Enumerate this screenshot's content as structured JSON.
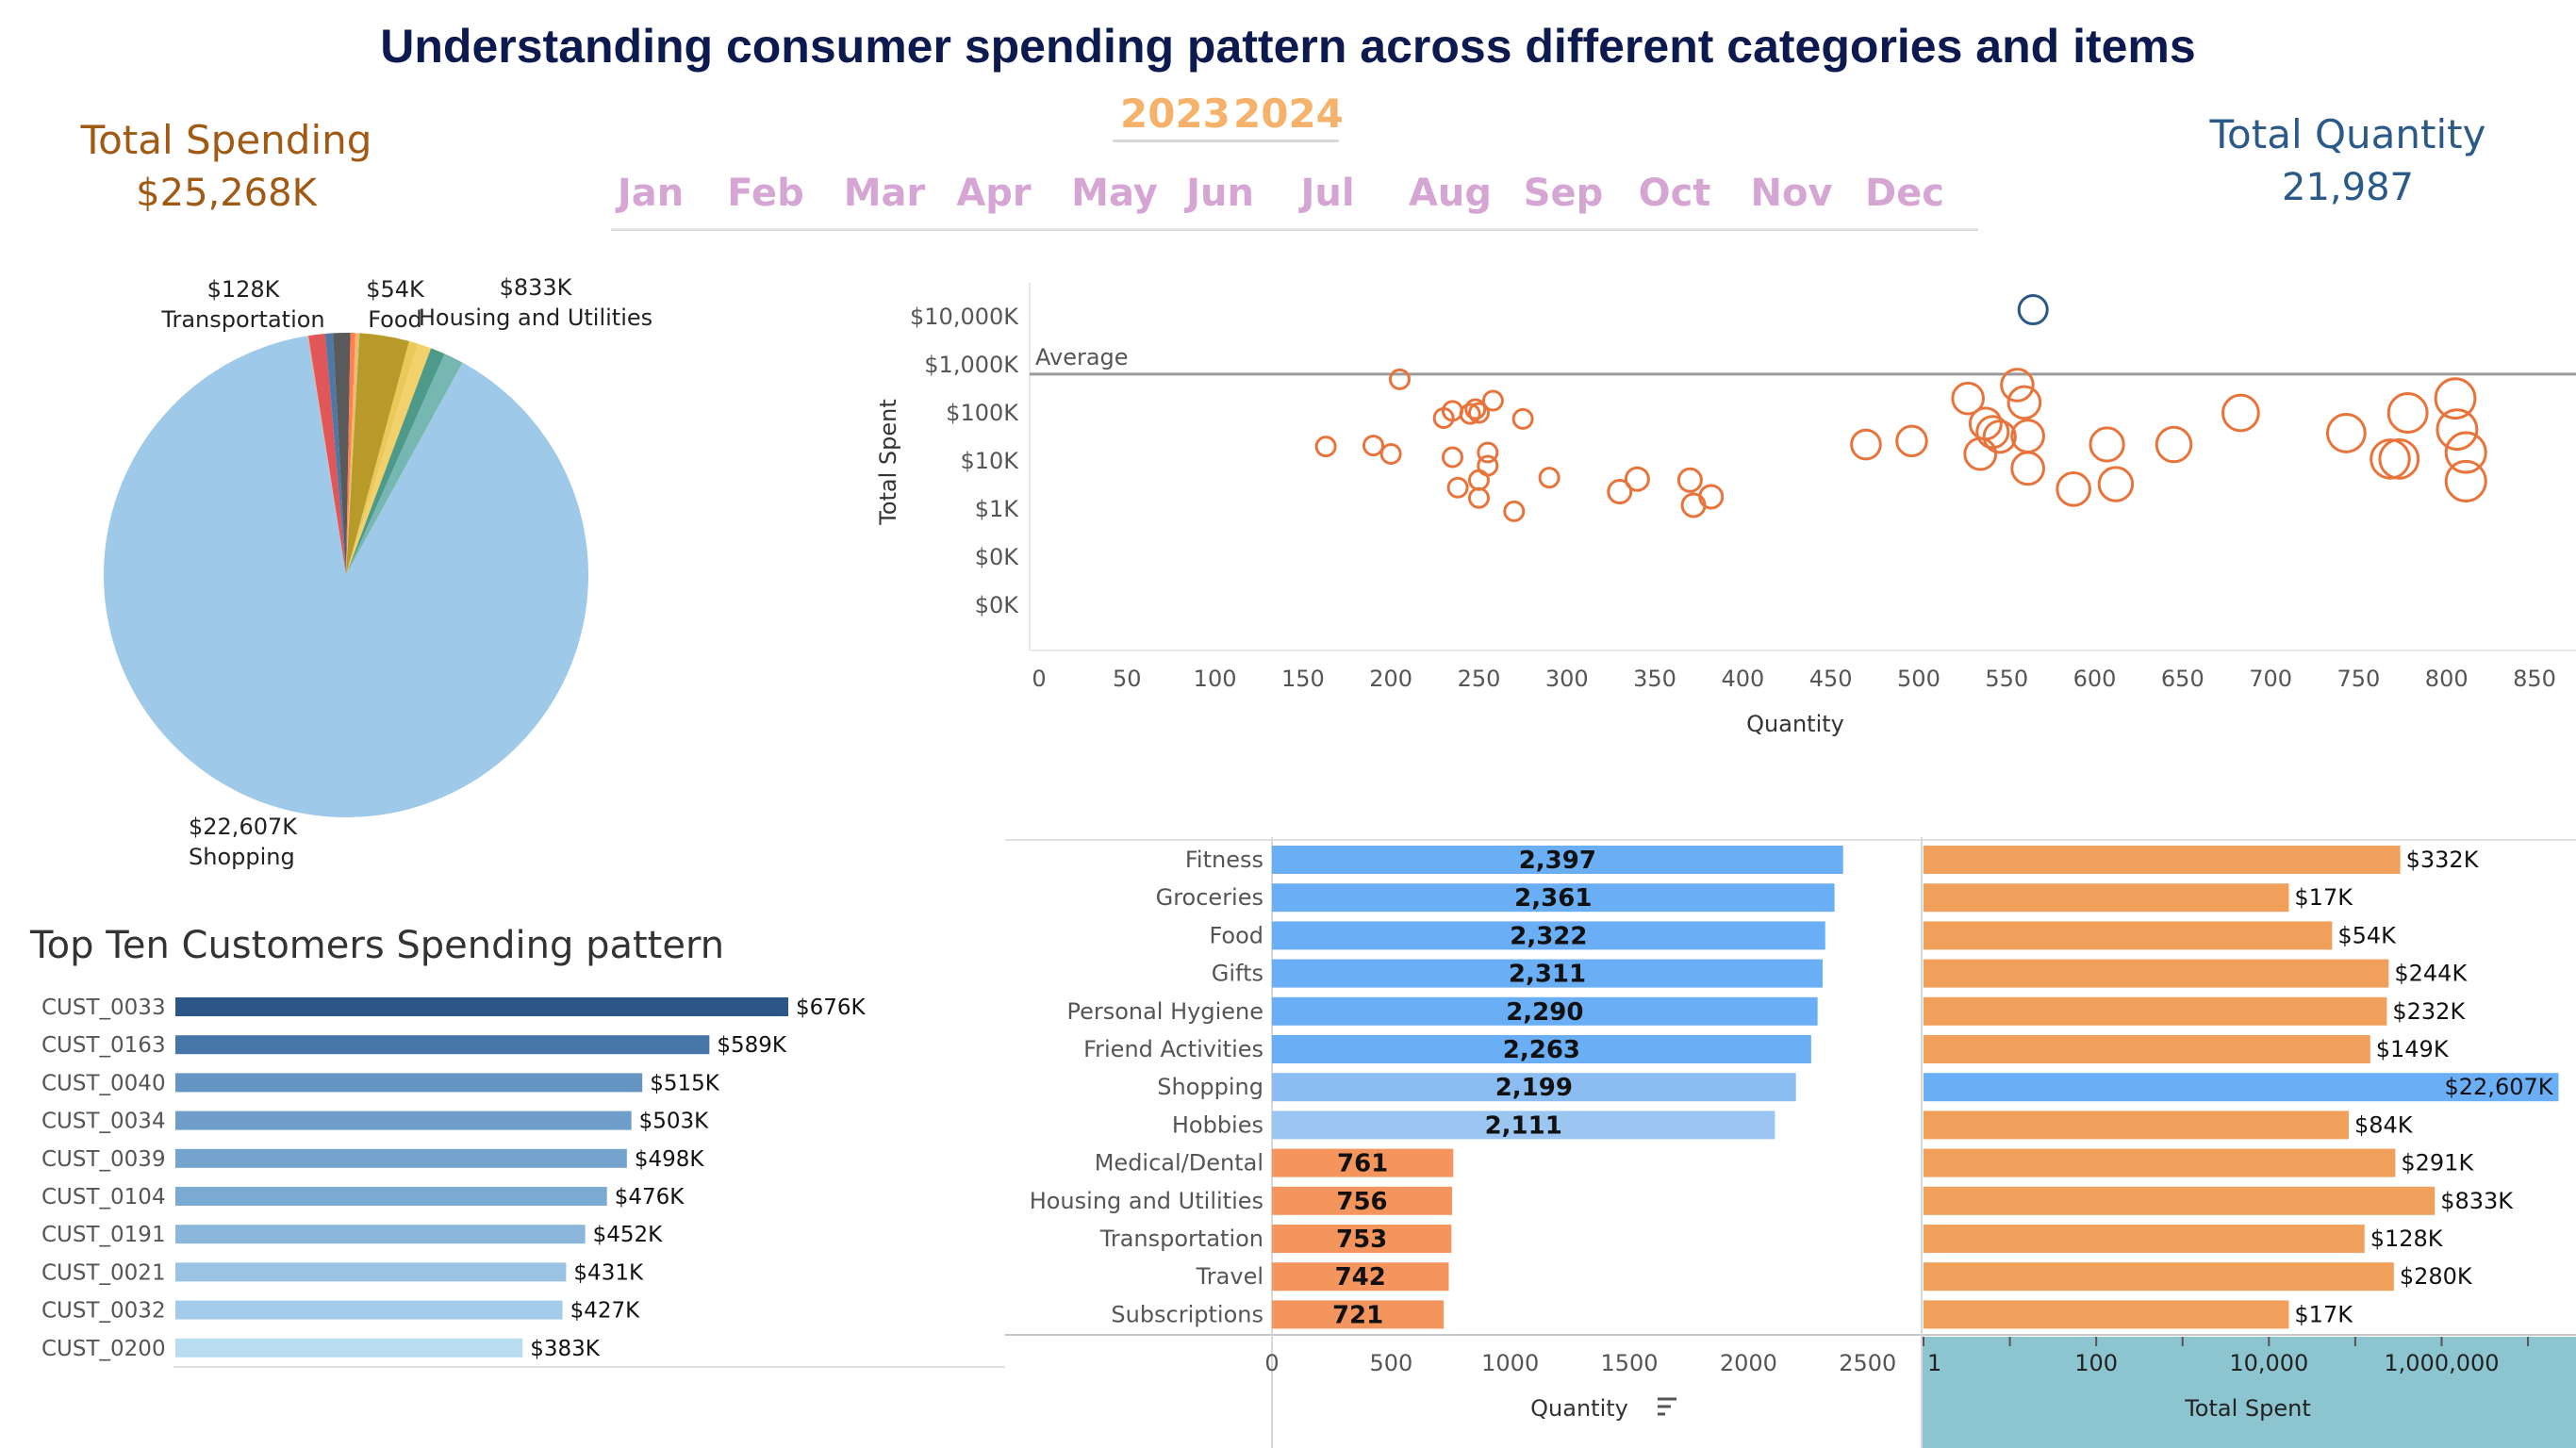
{
  "title": "Understanding consumer spending pattern across different categories and items",
  "kpis": {
    "spend_label": "Total Spending",
    "spend_value": "$25,268K",
    "qty_label": "Total Quantity",
    "qty_value": "21,987"
  },
  "filters": {
    "years": [
      "2023",
      "2024"
    ],
    "months": [
      "Jan",
      "Feb",
      "Mar",
      "Apr",
      "May",
      "Jun",
      "Jul",
      "Aug",
      "Sep",
      "Oct",
      "Nov",
      "Dec"
    ]
  },
  "colors": {
    "title": "#0d1a4f",
    "spend_kpi": "#a05a14",
    "qty_kpi": "#2b5a8a",
    "year": "#f6b26b",
    "month": "#d5a6d4",
    "scatter": "#e8743b",
    "scatter_highlight": "#2b5a8a",
    "qty_high": "#6aaef5",
    "qty_low": "#f4955e",
    "spent_bar": "#f0a05a",
    "spent_highlight": "#6aaef5",
    "axis_band": "#8cc4d0"
  },
  "chart_data": [
    {
      "type": "pie",
      "labels": [
        {
          "value": "$128K",
          "category": "Transportation"
        },
        {
          "value": "$54K",
          "category": "Food"
        },
        {
          "value": "$833K",
          "category": "Housing and Utilities"
        },
        {
          "value": "$22,607K",
          "category": "Shopping"
        }
      ],
      "slices": [
        {
          "name": "Shopping",
          "value": 22607,
          "color": "#9fc9e8"
        },
        {
          "name": "Subscriptions",
          "value": 17,
          "color": "#f4a582"
        },
        {
          "name": "Travel",
          "value": 280,
          "color": "#e15759"
        },
        {
          "name": "Transportation",
          "value": 128,
          "color": "#4e79a7"
        },
        {
          "name": "Medical/Dental",
          "value": 291,
          "color": "#5a5a5a"
        },
        {
          "name": "Hobbies",
          "value": 84,
          "color": "#ff7f50"
        },
        {
          "name": "Food",
          "value": 54,
          "color": "#ffb26b"
        },
        {
          "name": "Groceries",
          "value": 17,
          "color": "#9ed36a"
        },
        {
          "name": "Housing and Utilities",
          "value": 833,
          "color": "#b89a2a"
        },
        {
          "name": "Friend Activities",
          "value": 149,
          "color": "#e8c95a"
        },
        {
          "name": "Personal Hygiene",
          "value": 232,
          "color": "#f2d16b"
        },
        {
          "name": "Gifts",
          "value": 244,
          "color": "#4e9a8a"
        },
        {
          "name": "Fitness",
          "value": 332,
          "color": "#76b7b2"
        }
      ]
    },
    {
      "type": "scatter",
      "xlabel": "Quantity",
      "ylabel": "Total Spent",
      "y_scale": "log",
      "xticks": [
        0,
        50,
        100,
        150,
        200,
        250,
        300,
        350,
        400,
        450,
        500,
        550,
        600,
        650,
        700,
        750,
        800,
        850
      ],
      "yticks": [
        "$10,000K",
        "$1,000K",
        "$100K",
        "$10K",
        "$1K",
        "$0K",
        "$0K"
      ],
      "reference_line": {
        "label": "Average",
        "value": 640
      },
      "points": [
        {
          "x": 565,
          "y": 14000,
          "highlight": true
        },
        {
          "x": 163,
          "y": 20
        },
        {
          "x": 190,
          "y": 21
        },
        {
          "x": 200,
          "y": 14
        },
        {
          "x": 205,
          "y": 500
        },
        {
          "x": 230,
          "y": 78
        },
        {
          "x": 235,
          "y": 110
        },
        {
          "x": 235,
          "y": 12
        },
        {
          "x": 238,
          "y": 2.8
        },
        {
          "x": 245,
          "y": 95
        },
        {
          "x": 248,
          "y": 120
        },
        {
          "x": 250,
          "y": 100
        },
        {
          "x": 250,
          "y": 4
        },
        {
          "x": 250,
          "y": 1.7
        },
        {
          "x": 255,
          "y": 8
        },
        {
          "x": 255,
          "y": 15
        },
        {
          "x": 258,
          "y": 180
        },
        {
          "x": 270,
          "y": 0.9
        },
        {
          "x": 275,
          "y": 75
        },
        {
          "x": 290,
          "y": 4.5
        },
        {
          "x": 330,
          "y": 2.3
        },
        {
          "x": 340,
          "y": 4.2
        },
        {
          "x": 370,
          "y": 4
        },
        {
          "x": 372,
          "y": 1.2
        },
        {
          "x": 382,
          "y": 1.8
        },
        {
          "x": 470,
          "y": 22
        },
        {
          "x": 496,
          "y": 26
        },
        {
          "x": 528,
          "y": 200
        },
        {
          "x": 535,
          "y": 14
        },
        {
          "x": 538,
          "y": 60
        },
        {
          "x": 542,
          "y": 40
        },
        {
          "x": 546,
          "y": 32
        },
        {
          "x": 556,
          "y": 380
        },
        {
          "x": 560,
          "y": 165
        },
        {
          "x": 562,
          "y": 33
        },
        {
          "x": 562,
          "y": 7
        },
        {
          "x": 588,
          "y": 2.6
        },
        {
          "x": 607,
          "y": 22
        },
        {
          "x": 612,
          "y": 3.3
        },
        {
          "x": 645,
          "y": 22
        },
        {
          "x": 683,
          "y": 100
        },
        {
          "x": 743,
          "y": 38
        },
        {
          "x": 768,
          "y": 11
        },
        {
          "x": 773,
          "y": 11
        },
        {
          "x": 778,
          "y": 100
        },
        {
          "x": 805,
          "y": 200
        },
        {
          "x": 806,
          "y": 45
        },
        {
          "x": 811,
          "y": 15
        },
        {
          "x": 811,
          "y": 3.8
        }
      ]
    },
    {
      "type": "bar",
      "orientation": "horizontal",
      "categories": [
        "Fitness",
        "Groceries",
        "Food",
        "Gifts",
        "Personal Hygiene",
        "Friend Activities",
        "Shopping",
        "Hobbies",
        "Medical/Dental",
        "Housing and Utilities",
        "Transportation",
        "Travel",
        "Subscriptions"
      ],
      "series": [
        {
          "name": "Quantity",
          "values": [
            2397,
            2361,
            2322,
            2311,
            2290,
            2263,
            2199,
            2111,
            761,
            756,
            753,
            742,
            721
          ],
          "labels": [
            "2,397",
            "2,361",
            "2,322",
            "2,311",
            "2,290",
            "2,263",
            "2,199",
            "2,111",
            "761",
            "756",
            "753",
            "742",
            "721"
          ]
        },
        {
          "name": "Total Spent",
          "values": [
            332,
            17,
            54,
            244,
            232,
            149,
            22607,
            84,
            291,
            833,
            128,
            280,
            17
          ],
          "labels": [
            "$332K",
            "$17K",
            "$54K",
            "$244K",
            "$232K",
            "$149K",
            "$22,607K",
            "$84K",
            "$291K",
            "$833K",
            "$128K",
            "$280K",
            "$17K"
          ]
        }
      ],
      "qty_xlabel": "Quantity",
      "qty_xticks": [
        "0",
        "500",
        "1000",
        "1500",
        "2000",
        "2500"
      ],
      "qty_xlim": [
        0,
        2600
      ],
      "spent_xlabel": "Total Spent",
      "spent_xticks": [
        "1",
        "100",
        "10,000",
        "1,000,000"
      ],
      "spent_x_scale": "log"
    },
    {
      "type": "bar",
      "orientation": "horizontal",
      "title": "Top Ten Customers Spending pattern",
      "categories": [
        "CUST_0033",
        "CUST_0163",
        "CUST_0040",
        "CUST_0034",
        "CUST_0039",
        "CUST_0104",
        "CUST_0191",
        "CUST_0021",
        "CUST_0032",
        "CUST_0200"
      ],
      "values": [
        676,
        589,
        515,
        503,
        498,
        476,
        452,
        431,
        427,
        383
      ],
      "labels": [
        "$676K",
        "$589K",
        "$515K",
        "$503K",
        "$498K",
        "$476K",
        "$452K",
        "$431K",
        "$427K",
        "$383K"
      ],
      "colors": [
        "#2b5687",
        "#4677a8",
        "#6595c2",
        "#6d9dc8",
        "#74a4cd",
        "#7aaad2",
        "#8bb7dc",
        "#9ac3e4",
        "#a4cbe9",
        "#b9dcf1"
      ]
    }
  ]
}
